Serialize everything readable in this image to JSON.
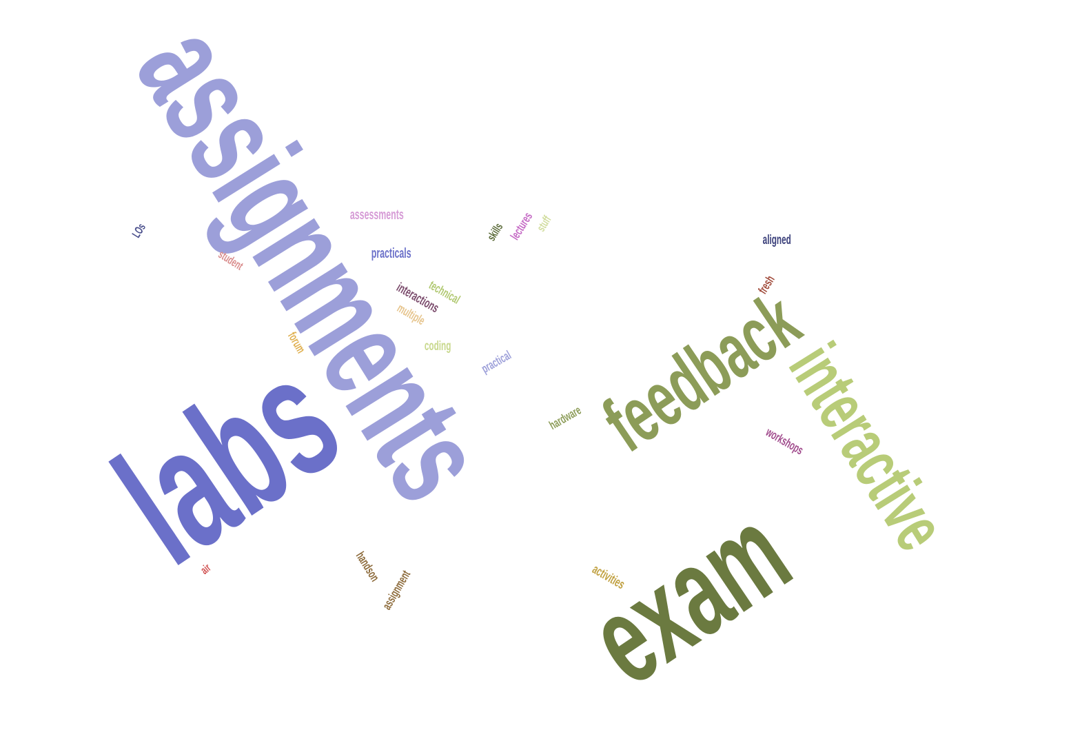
{
  "words": [
    {
      "text": "assignments",
      "color": "#9c9fd9"
    },
    {
      "text": "labs",
      "color": "#6b70c9"
    },
    {
      "text": "exam",
      "color": "#6b7a40"
    },
    {
      "text": "interactive",
      "color": "#b8cc78"
    },
    {
      "text": "feedback",
      "color": "#8c9c58"
    },
    {
      "text": "assessments",
      "color": "#d69bd6"
    },
    {
      "text": "practicals",
      "color": "#6b70c9"
    },
    {
      "text": "student",
      "color": "#d98c8c"
    },
    {
      "text": "LOs",
      "color": "#4a4f8c"
    },
    {
      "text": "technical",
      "color": "#b0c870"
    },
    {
      "text": "interactions",
      "color": "#7a4a6b"
    },
    {
      "text": "multiple",
      "color": "#e6c48c"
    },
    {
      "text": "forum",
      "color": "#e0b050"
    },
    {
      "text": "coding",
      "color": "#c8d88c"
    },
    {
      "text": "practical",
      "color": "#9c9fd9"
    },
    {
      "text": "skills",
      "color": "#5a6a38"
    },
    {
      "text": "lectures",
      "color": "#c468c4"
    },
    {
      "text": "stuff",
      "color": "#d0dc9c"
    },
    {
      "text": "aligned",
      "color": "#3a3f7a"
    },
    {
      "text": "fresh",
      "color": "#a04a3a"
    },
    {
      "text": "hardware",
      "color": "#8c9c58"
    },
    {
      "text": "workshops",
      "color": "#a04a8c"
    },
    {
      "text": "air",
      "color": "#d05050"
    },
    {
      "text": "handson",
      "color": "#8c6a3a"
    },
    {
      "text": "assignment",
      "color": "#8c6a3a"
    },
    {
      "text": "activities",
      "color": "#c0a040"
    }
  ]
}
